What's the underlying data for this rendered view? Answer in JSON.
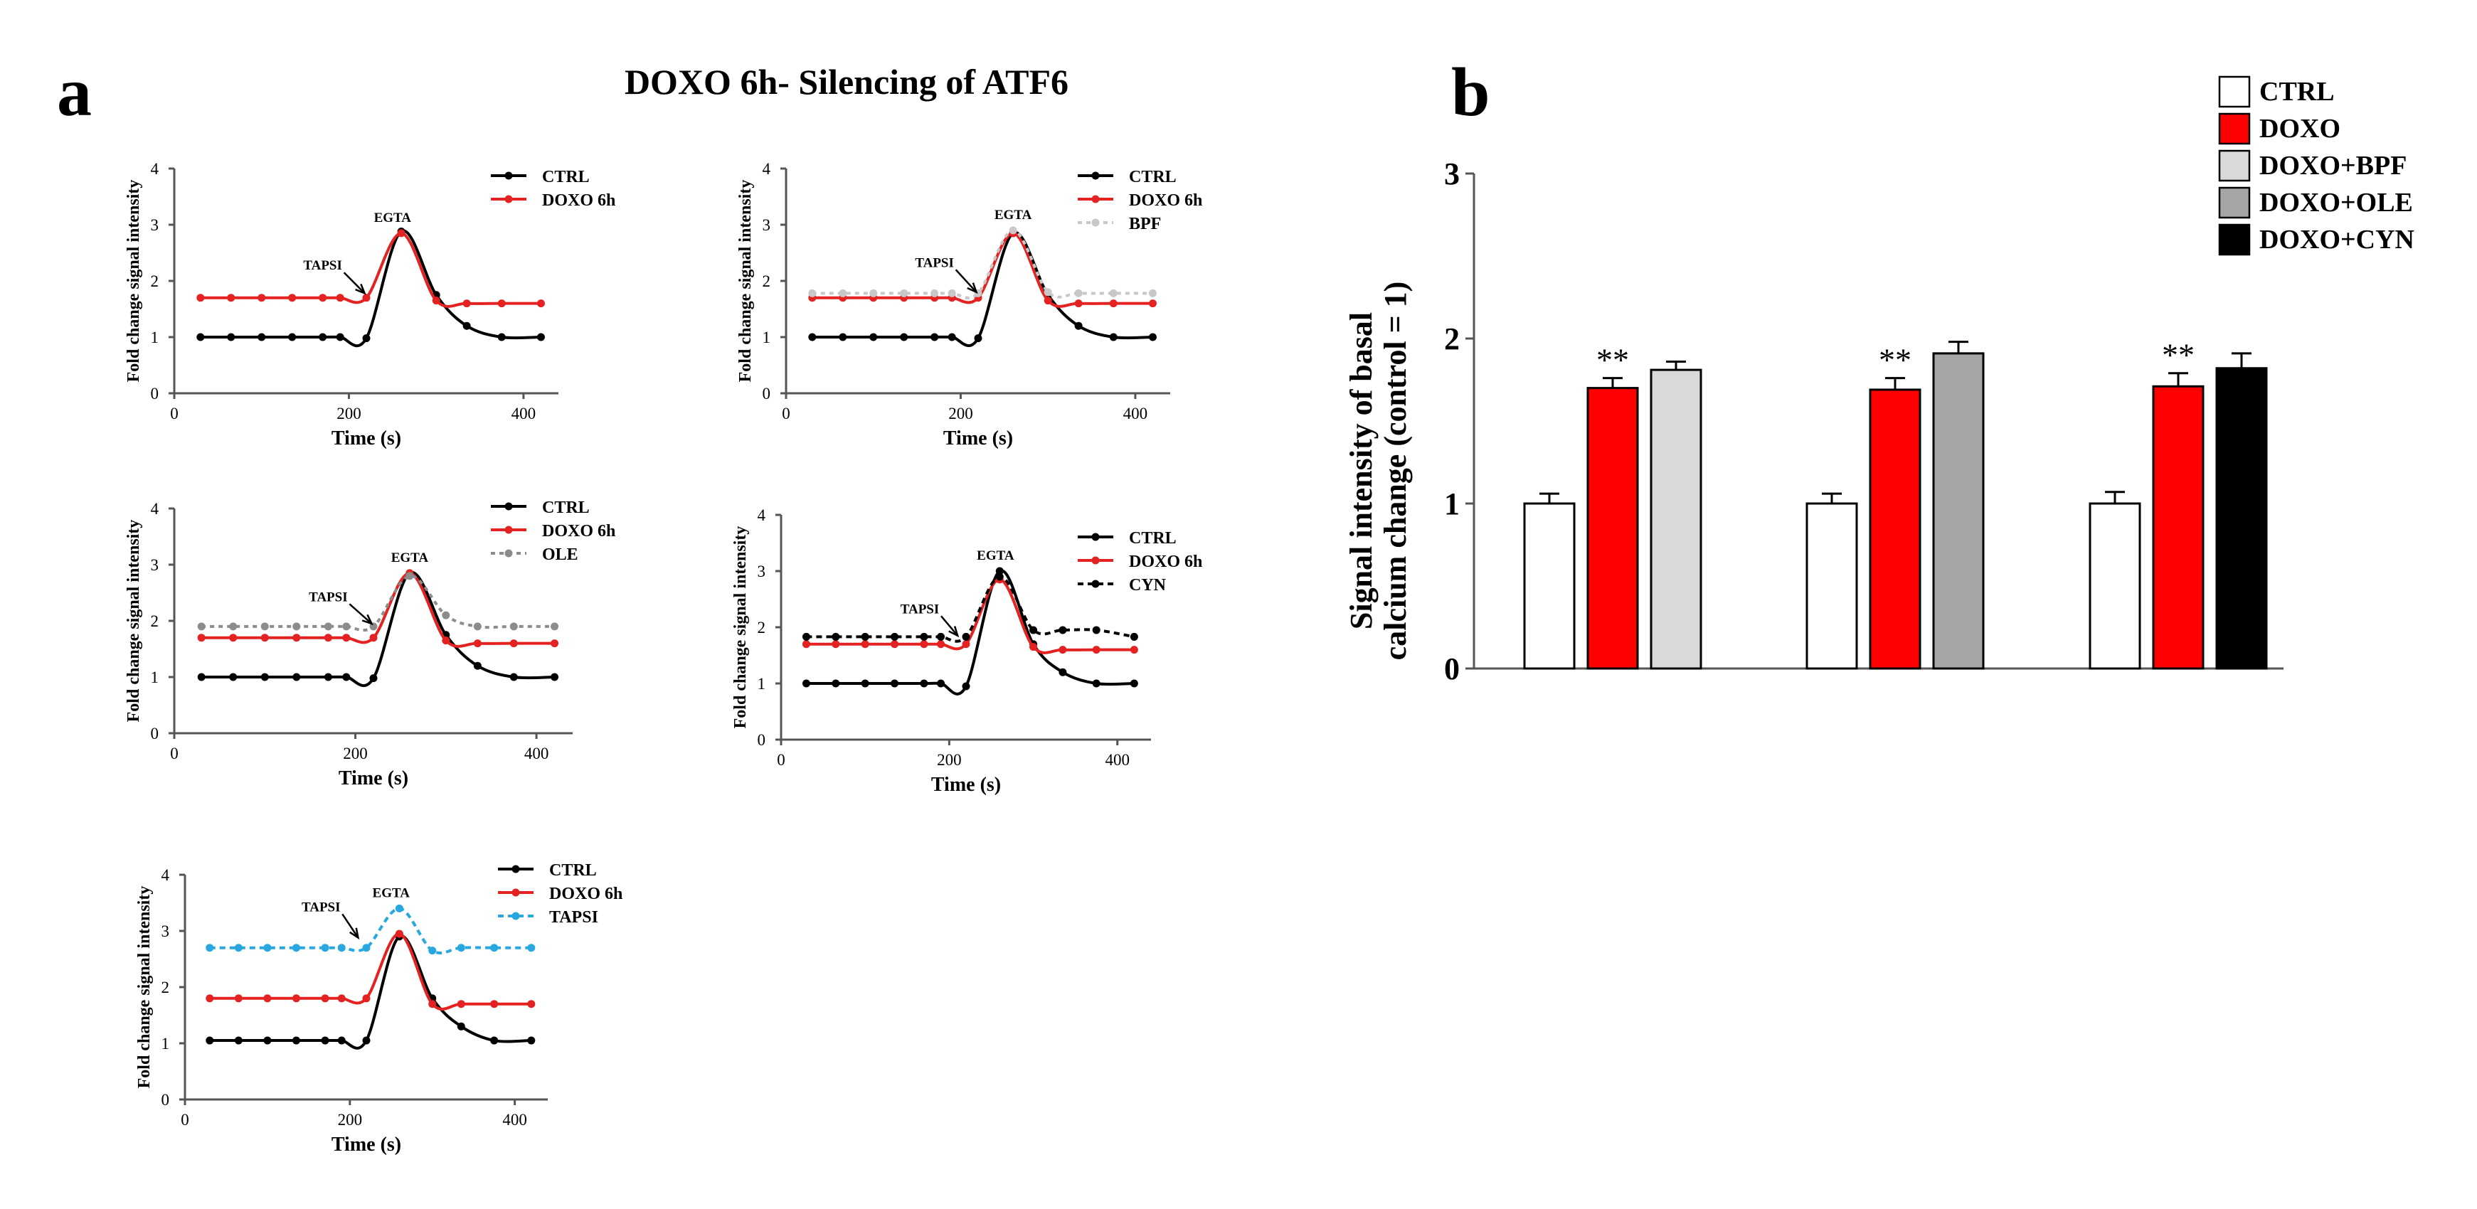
{
  "panel_a_label": "a",
  "panel_b_label": "b",
  "figure_title": "DOXO 6h- Silencing  of ATF6",
  "chart_data": [
    {
      "type": "line",
      "id": "line1",
      "xlabel": "Time (s)",
      "ylabel": "Fold change signal intensity",
      "xlim": [
        0,
        440
      ],
      "ylim": [
        0,
        4
      ],
      "xticks": [
        0,
        200,
        400
      ],
      "yticks": [
        0,
        1,
        2,
        3,
        4
      ],
      "x": [
        30,
        65,
        100,
        135,
        170,
        190,
        220,
        260,
        300,
        335,
        375,
        420
      ],
      "annotations": [
        {
          "text": "TAPSI",
          "x": 170,
          "y": 2.2,
          "arrow_to": [
            218,
            1.78
          ]
        },
        {
          "text": "EGTA",
          "x": 250,
          "y": 3.05
        }
      ],
      "series": [
        {
          "name": "CTRL",
          "color": "#000000",
          "dash": "",
          "values": [
            1.0,
            1.0,
            1.0,
            1.0,
            1.0,
            1.0,
            0.98,
            2.88,
            1.75,
            1.2,
            1.0,
            1.0
          ]
        },
        {
          "name": "DOXO 6h",
          "color": "#e52222",
          "dash": "",
          "values": [
            1.7,
            1.7,
            1.7,
            1.7,
            1.7,
            1.7,
            1.7,
            2.85,
            1.65,
            1.6,
            1.6,
            1.6
          ]
        }
      ]
    },
    {
      "type": "line",
      "id": "line2",
      "xlabel": "Time (s)",
      "ylabel": "Fold change signal intensity",
      "xlim": [
        0,
        440
      ],
      "ylim": [
        0,
        4
      ],
      "xticks": [
        0,
        200,
        400
      ],
      "yticks": [
        0,
        1,
        2,
        3,
        4
      ],
      "x": [
        30,
        65,
        100,
        135,
        170,
        190,
        220,
        260,
        300,
        335,
        375,
        420
      ],
      "annotations": [
        {
          "text": "TAPSI",
          "x": 170,
          "y": 2.25,
          "arrow_to": [
            218,
            1.8
          ]
        },
        {
          "text": "EGTA",
          "x": 260,
          "y": 3.1
        }
      ],
      "series": [
        {
          "name": "CTRL",
          "color": "#000000",
          "dash": "",
          "values": [
            1.0,
            1.0,
            1.0,
            1.0,
            1.0,
            1.0,
            0.98,
            2.85,
            1.75,
            1.2,
            1.0,
            1.0
          ]
        },
        {
          "name": "DOXO 6h",
          "color": "#e52222",
          "dash": "",
          "values": [
            1.7,
            1.7,
            1.7,
            1.7,
            1.7,
            1.7,
            1.7,
            2.85,
            1.65,
            1.6,
            1.6,
            1.6
          ]
        },
        {
          "name": "BPF",
          "color": "#c8c8c8",
          "dash": "6,6",
          "values": [
            1.78,
            1.78,
            1.78,
            1.78,
            1.78,
            1.78,
            1.78,
            2.9,
            1.8,
            1.78,
            1.78,
            1.78
          ]
        }
      ]
    },
    {
      "type": "line",
      "id": "line3",
      "xlabel": "Time (s)",
      "ylabel": "Fold change signal intensity",
      "xlim": [
        0,
        440
      ],
      "ylim": [
        0,
        4
      ],
      "xticks": [
        0,
        200,
        400
      ],
      "yticks": [
        0,
        1,
        2,
        3,
        4
      ],
      "x": [
        30,
        65,
        100,
        135,
        170,
        190,
        220,
        260,
        300,
        335,
        375,
        420
      ],
      "annotations": [
        {
          "text": "TAPSI",
          "x": 170,
          "y": 2.35,
          "arrow_to": [
            218,
            1.95
          ]
        },
        {
          "text": "EGTA",
          "x": 260,
          "y": 3.05
        }
      ],
      "series": [
        {
          "name": "CTRL",
          "color": "#000000",
          "dash": "",
          "values": [
            1.0,
            1.0,
            1.0,
            1.0,
            1.0,
            1.0,
            0.98,
            2.85,
            1.75,
            1.2,
            1.0,
            1.0
          ]
        },
        {
          "name": "DOXO 6h",
          "color": "#e52222",
          "dash": "",
          "values": [
            1.7,
            1.7,
            1.7,
            1.7,
            1.7,
            1.7,
            1.7,
            2.85,
            1.65,
            1.6,
            1.6,
            1.6
          ]
        },
        {
          "name": "OLE",
          "color": "#8c8c8c",
          "dash": "6,6",
          "values": [
            1.9,
            1.9,
            1.9,
            1.9,
            1.9,
            1.9,
            1.9,
            2.8,
            2.1,
            1.9,
            1.9,
            1.9
          ]
        }
      ]
    },
    {
      "type": "line",
      "id": "line4",
      "xlabel": "Time (s)",
      "ylabel": "Fold change signal intensity",
      "xlim": [
        0,
        440
      ],
      "ylim": [
        0,
        4
      ],
      "xticks": [
        0,
        200,
        400
      ],
      "yticks": [
        0,
        1,
        2,
        3,
        4
      ],
      "x": [
        30,
        65,
        100,
        135,
        170,
        190,
        220,
        260,
        300,
        335,
        375,
        420
      ],
      "annotations": [
        {
          "text": "TAPSI",
          "x": 165,
          "y": 2.25,
          "arrow_to": [
            210,
            1.85
          ]
        },
        {
          "text": "EGTA",
          "x": 255,
          "y": 3.2
        }
      ],
      "series": [
        {
          "name": "CTRL",
          "color": "#000000",
          "dash": "",
          "values": [
            1.0,
            1.0,
            1.0,
            1.0,
            1.0,
            1.0,
            0.95,
            3.0,
            1.7,
            1.2,
            1.0,
            1.0
          ]
        },
        {
          "name": "DOXO 6h",
          "color": "#e52222",
          "dash": "",
          "values": [
            1.7,
            1.7,
            1.7,
            1.7,
            1.7,
            1.7,
            1.7,
            2.85,
            1.65,
            1.6,
            1.6,
            1.6
          ]
        },
        {
          "name": "CYN",
          "color": "#000000",
          "dash": "8,6",
          "values": [
            1.83,
            1.83,
            1.83,
            1.83,
            1.83,
            1.83,
            1.83,
            2.9,
            1.95,
            1.95,
            1.95,
            1.83
          ]
        }
      ]
    },
    {
      "type": "line",
      "id": "line5",
      "xlabel": "Time (s)",
      "ylabel": "Fold change signal intensity",
      "xlim": [
        0,
        440
      ],
      "ylim": [
        0,
        4
      ],
      "xticks": [
        0,
        200,
        400
      ],
      "yticks": [
        0,
        1,
        2,
        3,
        4
      ],
      "x": [
        30,
        65,
        100,
        135,
        170,
        190,
        220,
        260,
        300,
        335,
        375,
        420
      ],
      "annotations": [
        {
          "text": "TAPSI",
          "x": 165,
          "y": 3.35,
          "arrow_to": [
            210,
            2.88
          ]
        },
        {
          "text": "EGTA",
          "x": 250,
          "y": 3.6
        }
      ],
      "series": [
        {
          "name": "CTRL",
          "color": "#000000",
          "dash": "",
          "values": [
            1.05,
            1.05,
            1.05,
            1.05,
            1.05,
            1.05,
            1.05,
            2.9,
            1.8,
            1.3,
            1.05,
            1.05
          ]
        },
        {
          "name": "DOXO 6h",
          "color": "#e52222",
          "dash": "",
          "values": [
            1.8,
            1.8,
            1.8,
            1.8,
            1.8,
            1.8,
            1.8,
            2.95,
            1.7,
            1.7,
            1.7,
            1.7
          ]
        },
        {
          "name": "TAPSI",
          "color": "#29a8e0",
          "dash": "8,6",
          "values": [
            2.7,
            2.7,
            2.7,
            2.7,
            2.7,
            2.7,
            2.7,
            3.4,
            2.65,
            2.7,
            2.7,
            2.7
          ]
        }
      ]
    },
    {
      "type": "bar",
      "id": "bar_b",
      "ylabel_line1": "Signal intensity of basal",
      "ylabel_line2": "calcium change (control = 1)",
      "ylim": [
        0,
        3
      ],
      "yticks": [
        0,
        1,
        2,
        3
      ],
      "significance_marker": "**",
      "legend": [
        {
          "name": "CTRL",
          "color": "#ffffff"
        },
        {
          "name": "DOXO",
          "color": "#ff0000"
        },
        {
          "name": "DOXO+BPF",
          "color": "#d9d9d9"
        },
        {
          "name": "DOXO+OLE",
          "color": "#a6a6a6"
        },
        {
          "name": "DOXO+CYN",
          "color": "#000000"
        }
      ],
      "groups": [
        {
          "bars": [
            {
              "name": "CTRL",
              "value": 1.0,
              "error": 0.06,
              "color": "#ffffff",
              "sig": false
            },
            {
              "name": "DOXO",
              "value": 1.7,
              "error": 0.06,
              "color": "#ff0000",
              "sig": true
            },
            {
              "name": "DOXO+BPF",
              "value": 1.81,
              "error": 0.05,
              "color": "#d9d9d9",
              "sig": false
            }
          ]
        },
        {
          "bars": [
            {
              "name": "CTRL",
              "value": 1.0,
              "error": 0.06,
              "color": "#ffffff",
              "sig": false
            },
            {
              "name": "DOXO",
              "value": 1.69,
              "error": 0.07,
              "color": "#ff0000",
              "sig": true
            },
            {
              "name": "DOXO+OLE",
              "value": 1.91,
              "error": 0.07,
              "color": "#a6a6a6",
              "sig": false
            }
          ]
        },
        {
          "bars": [
            {
              "name": "CTRL",
              "value": 1.0,
              "error": 0.07,
              "color": "#ffffff",
              "sig": false
            },
            {
              "name": "DOXO",
              "value": 1.71,
              "error": 0.08,
              "color": "#ff0000",
              "sig": true
            },
            {
              "name": "DOXO+CYN",
              "value": 1.82,
              "error": 0.09,
              "color": "#000000",
              "sig": false
            }
          ]
        }
      ]
    }
  ]
}
